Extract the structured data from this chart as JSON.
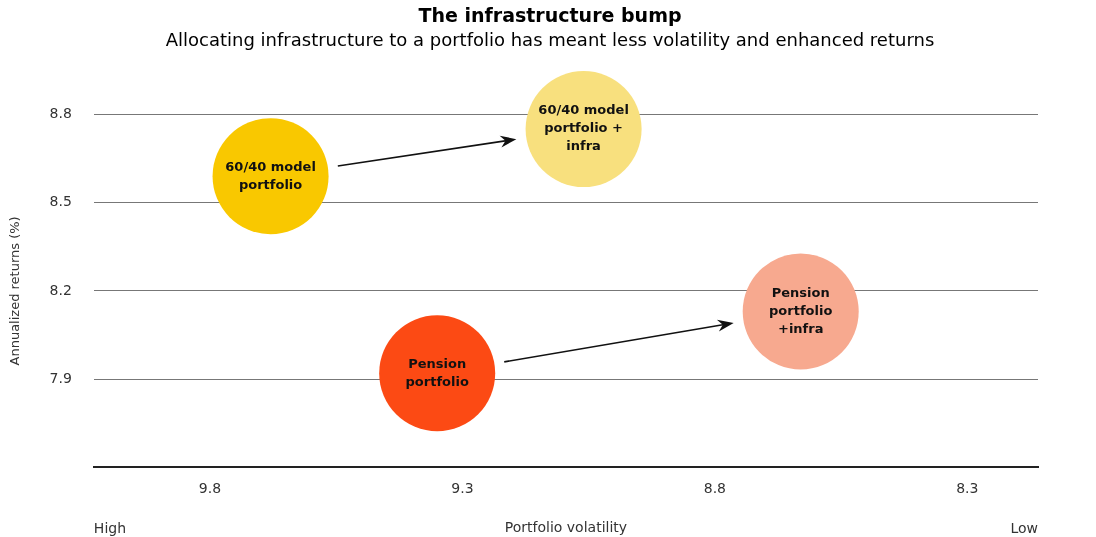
{
  "chart_data": {
    "type": "bubble",
    "title": "The infrastructure bump",
    "subtitle": "Allocating infrastructure to a portfolio has meant less volatility and enhanced returns",
    "xlabel": "Portfolio volatility",
    "ylabel": "Annualized returns (%)",
    "annotations": [
      "High",
      "Low"
    ],
    "xlim": [
      10.03,
      8.16
    ],
    "xticks": [
      9.8,
      9.3,
      8.8,
      8.3
    ],
    "ylim": [
      7.6,
      8.8
    ],
    "yticks": [
      7.9,
      8.2,
      8.5,
      8.8
    ],
    "grid": "y",
    "legend": false,
    "series": [
      {
        "name": "60/40 model portfolio",
        "color": "#f9c800",
        "x": [
          9.68
        ],
        "values": [
          8.59
        ],
        "sizes": [
          1
        ]
      },
      {
        "name": "60/40 model portfolio + infra",
        "color": "#f8e07e",
        "x": [
          9.06
        ],
        "values": [
          8.75
        ],
        "sizes": [
          1
        ]
      },
      {
        "name": "Pension portfolio",
        "color": "#fc4a14",
        "x": [
          9.35
        ],
        "values": [
          7.92
        ],
        "sizes": [
          1
        ]
      },
      {
        "name": "Pension portfolio +infra",
        "color": "#f7a98f",
        "x": [
          8.63
        ],
        "values": [
          8.13
        ],
        "sizes": [
          1
        ]
      }
    ]
  }
}
